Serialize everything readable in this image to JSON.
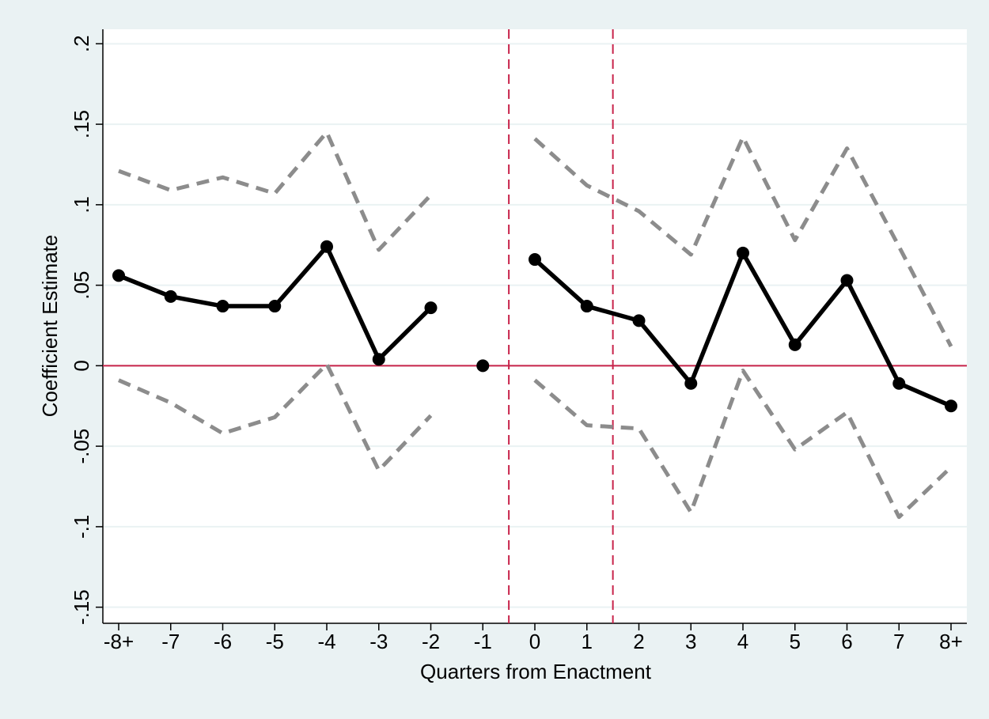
{
  "chart_data": {
    "type": "line",
    "x_label": "Quarters from Enactment",
    "y_label": "Coefficient Estimate",
    "categories": [
      "-8+",
      "-7",
      "-6",
      "-5",
      "-4",
      "-3",
      "-2",
      "-1",
      "0",
      "1",
      "2",
      "3",
      "4",
      "5",
      "6",
      "7",
      "8+"
    ],
    "ylim": [
      -0.16,
      0.209
    ],
    "yticks": [
      {
        "value": -0.15,
        "label": "-.15"
      },
      {
        "value": -0.1,
        "label": "-.1"
      },
      {
        "value": -0.05,
        "label": "-.05"
      },
      0,
      {
        "value": 0.05,
        "label": ".05"
      },
      {
        "value": 0.1,
        "label": ".1"
      },
      {
        "value": 0.15,
        "label": ".15"
      },
      {
        "value": 0.2,
        "label": ".2"
      }
    ],
    "grid": true,
    "hline": {
      "value": 0,
      "color": "#c8234a"
    },
    "vlines": {
      "positions": [
        7.5,
        9.5
      ],
      "color": "#c8234a"
    },
    "series": [
      {
        "style": "dashed",
        "color": "#8c8c8c",
        "values": [
          0.121,
          0.109,
          0.117,
          0.107,
          0.145,
          0.072,
          0.106,
          null,
          0.141,
          0.112,
          0.096,
          0.069,
          0.142,
          0.078,
          0.135,
          0.074,
          0.012
        ]
      },
      {
        "style": "dashed",
        "color": "#8c8c8c",
        "values": [
          -0.009,
          -0.023,
          -0.042,
          -0.032,
          0.001,
          -0.065,
          -0.031,
          null,
          -0.009,
          -0.037,
          -0.039,
          -0.091,
          -0.003,
          -0.052,
          -0.029,
          -0.094,
          -0.063
        ]
      },
      {
        "style": "solid",
        "color": "#000000",
        "values": [
          0.056,
          0.043,
          0.037,
          0.037,
          0.074,
          0.004,
          0.036,
          null,
          0.066,
          0.037,
          0.028,
          -0.011,
          0.07,
          0.013,
          0.053,
          -0.011,
          -0.025
        ]
      },
      {
        "style": "markers",
        "color": "#000000",
        "values": [
          null,
          null,
          null,
          null,
          null,
          null,
          null,
          0,
          null,
          null,
          null,
          null,
          null,
          null,
          null,
          null,
          null
        ]
      }
    ]
  }
}
